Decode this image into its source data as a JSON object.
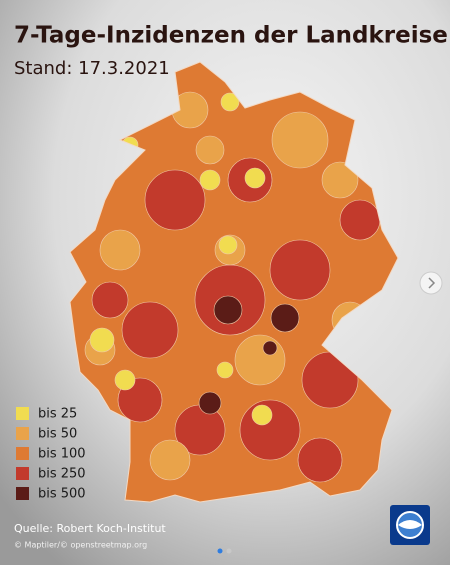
{
  "header": {
    "title": "7-Tage-Inzidenzen der Landkreise",
    "subtitle": "Stand: 17.3.2021"
  },
  "legend": [
    {
      "label": "bis 25",
      "color": "#f1dc50"
    },
    {
      "label": "bis 50",
      "color": "#e9a34a"
    },
    {
      "label": "bis 100",
      "color": "#de7a33"
    },
    {
      "label": "bis 250",
      "color": "#c23a2c"
    },
    {
      "label": "bis 500",
      "color": "#5b1c17"
    }
  ],
  "footer": {
    "source": "Quelle: Robert Koch-Institut",
    "attribution": "© Maptiler/© openstreetmap.org"
  }
}
